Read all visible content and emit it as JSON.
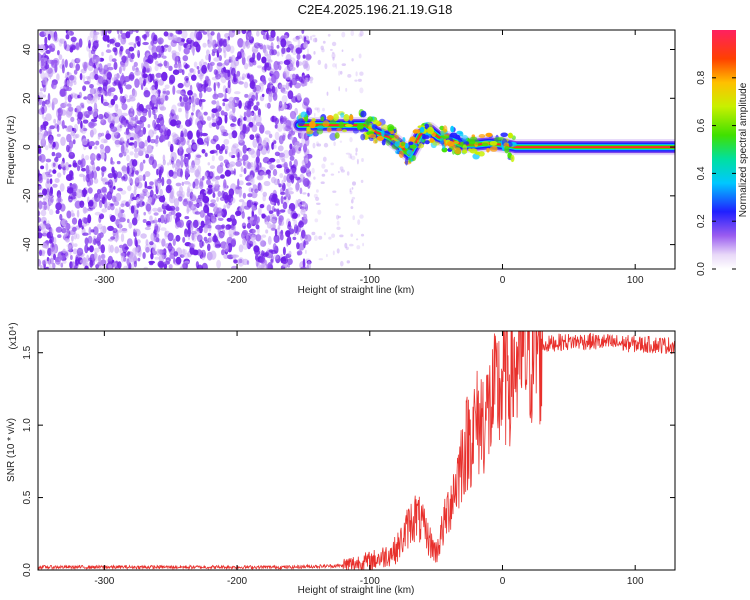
{
  "title": "C2E4.2025.196.21.19.G18",
  "chart_data": [
    {
      "type": "heatmap",
      "xlabel": "Height of straight line (km)",
      "ylabel": "Frequency (Hz)",
      "xlim": [
        -350,
        130
      ],
      "ylim": [
        -50,
        48
      ],
      "x_ticks": [
        -300,
        -200,
        -100,
        0,
        100
      ],
      "y_ticks": [
        -40,
        -20,
        0,
        20,
        40
      ],
      "colorbar": {
        "label": "Normalized spectral amplitude",
        "ticks": [
          "0.0",
          "0.2",
          "0.4",
          "0.6",
          "0.8"
        ],
        "tick_values": [
          0.0,
          0.2,
          0.4,
          0.6,
          0.8
        ],
        "range": [
          0,
          1
        ]
      },
      "noise_region_x": [
        -350,
        -150
      ],
      "signal_ridge": {
        "x": [
          -153,
          -145,
          -130,
          -115,
          -103,
          -95,
          -85,
          -78,
          -70,
          -62,
          -55,
          -48,
          -40,
          -30,
          -20,
          -10,
          0,
          5,
          10,
          50,
          100,
          130
        ],
        "y": [
          9,
          9,
          9,
          9,
          9,
          6,
          4,
          1,
          -3,
          5,
          7,
          4,
          3,
          1,
          1,
          1.5,
          1,
          0.5,
          0,
          0,
          0,
          0
        ]
      }
    },
    {
      "type": "line",
      "xlabel": "Height of straight line (km)",
      "ylabel": "SNR (10 * v/v)",
      "scale_note": "(x10⁴)",
      "xlim": [
        -350,
        130
      ],
      "ylim": [
        0,
        1.65
      ],
      "x_ticks": [
        -300,
        -200,
        -100,
        0,
        100
      ],
      "y_ticks": [
        "0.0",
        "0.5",
        "1.0",
        "1.5"
      ],
      "y_tick_values": [
        0,
        0.5,
        1.0,
        1.5
      ],
      "color": "#e8302c",
      "series": [
        {
          "x": [
            -350,
            -250,
            -160,
            -120,
            -100,
            -90,
            -80,
            -75,
            -70,
            -65,
            -60,
            -55,
            -50,
            -45,
            -40,
            -35,
            -30,
            -25,
            -20,
            -15,
            -10,
            -5,
            0,
            10,
            20,
            30,
            40,
            60,
            80,
            100,
            130
          ],
          "values": [
            0.02,
            0.02,
            0.02,
            0.03,
            0.06,
            0.09,
            0.14,
            0.22,
            0.32,
            0.38,
            0.3,
            0.2,
            0.12,
            0.28,
            0.45,
            0.6,
            0.8,
            0.92,
            1.0,
            1.05,
            1.1,
            1.2,
            1.3,
            1.42,
            1.52,
            1.55,
            1.57,
            1.58,
            1.57,
            1.56,
            1.55
          ]
        }
      ]
    }
  ]
}
